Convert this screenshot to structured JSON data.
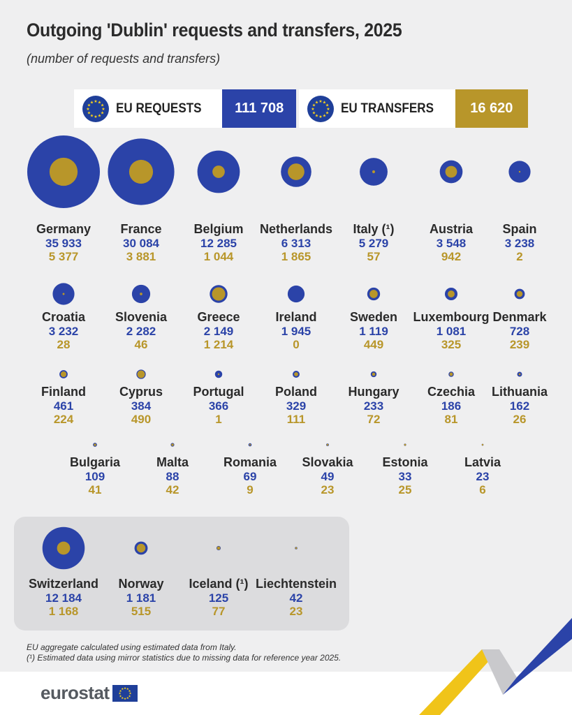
{
  "title": "Outgoing 'Dublin' requests and transfers, 2025",
  "subtitle": "(number of requests and transfers)",
  "summary": {
    "requests_label": "EU REQUESTS",
    "requests_value": "111 708",
    "transfers_label": "EU TRANSFERS",
    "transfers_value": "16 620"
  },
  "colors": {
    "requests": "#2b43a8",
    "transfers": "#b8962a",
    "panel": "#dcdcde"
  },
  "chart_data": {
    "type": "bubble",
    "series": [
      {
        "name": "EU REQUESTS",
        "color": "#2b43a8"
      },
      {
        "name": "EU TRANSFERS",
        "color": "#b8962a"
      }
    ],
    "eu_countries": [
      {
        "country": "Germany",
        "requests": 35933,
        "transfers": 5377,
        "requests_text": "35 933",
        "transfers_text": "5 377"
      },
      {
        "country": "France",
        "requests": 30084,
        "transfers": 3881,
        "requests_text": "30 084",
        "transfers_text": "3 881"
      },
      {
        "country": "Belgium",
        "requests": 12285,
        "transfers": 1044,
        "requests_text": "12 285",
        "transfers_text": "1 044"
      },
      {
        "country": "Netherlands",
        "requests": 6313,
        "transfers": 1865,
        "requests_text": "6 313",
        "transfers_text": "1 865"
      },
      {
        "country": "Italy (¹)",
        "requests": 5279,
        "transfers": 57,
        "requests_text": "5 279",
        "transfers_text": "57"
      },
      {
        "country": "Austria",
        "requests": 3548,
        "transfers": 942,
        "requests_text": "3 548",
        "transfers_text": "942"
      },
      {
        "country": "Spain",
        "requests": 3238,
        "transfers": 2,
        "requests_text": "3 238",
        "transfers_text": "2"
      },
      {
        "country": "Croatia",
        "requests": 3232,
        "transfers": 28,
        "requests_text": "3 232",
        "transfers_text": "28"
      },
      {
        "country": "Slovenia",
        "requests": 2282,
        "transfers": 46,
        "requests_text": "2 282",
        "transfers_text": "46"
      },
      {
        "country": "Greece",
        "requests": 2149,
        "transfers": 1214,
        "requests_text": "2 149",
        "transfers_text": "1 214"
      },
      {
        "country": "Ireland",
        "requests": 1945,
        "transfers": 0,
        "requests_text": "1 945",
        "transfers_text": "0"
      },
      {
        "country": "Sweden",
        "requests": 1119,
        "transfers": 449,
        "requests_text": "1 119",
        "transfers_text": "449"
      },
      {
        "country": "Luxembourg",
        "requests": 1081,
        "transfers": 325,
        "requests_text": "1 081",
        "transfers_text": "325"
      },
      {
        "country": "Denmark",
        "requests": 728,
        "transfers": 239,
        "requests_text": "728",
        "transfers_text": "239"
      },
      {
        "country": "Finland",
        "requests": 461,
        "transfers": 224,
        "requests_text": "461",
        "transfers_text": "224"
      },
      {
        "country": "Cyprus",
        "requests": 384,
        "transfers": 490,
        "requests_text": "384",
        "transfers_text": "490"
      },
      {
        "country": "Portugal",
        "requests": 366,
        "transfers": 1,
        "requests_text": "366",
        "transfers_text": "1"
      },
      {
        "country": "Poland",
        "requests": 329,
        "transfers": 111,
        "requests_text": "329",
        "transfers_text": "111"
      },
      {
        "country": "Hungary",
        "requests": 233,
        "transfers": 72,
        "requests_text": "233",
        "transfers_text": "72"
      },
      {
        "country": "Czechia",
        "requests": 186,
        "transfers": 81,
        "requests_text": "186",
        "transfers_text": "81"
      },
      {
        "country": "Lithuania",
        "requests": 162,
        "transfers": 26,
        "requests_text": "162",
        "transfers_text": "26"
      },
      {
        "country": "Bulgaria",
        "requests": 109,
        "transfers": 41,
        "requests_text": "109",
        "transfers_text": "41"
      },
      {
        "country": "Malta",
        "requests": 88,
        "transfers": 42,
        "requests_text": "88",
        "transfers_text": "42"
      },
      {
        "country": "Romania",
        "requests": 69,
        "transfers": 9,
        "requests_text": "69",
        "transfers_text": "9"
      },
      {
        "country": "Slovakia",
        "requests": 49,
        "transfers": 23,
        "requests_text": "49",
        "transfers_text": "23"
      },
      {
        "country": "Estonia",
        "requests": 33,
        "transfers": 25,
        "requests_text": "33",
        "transfers_text": "25"
      },
      {
        "country": "Latvia",
        "requests": 23,
        "transfers": 6,
        "requests_text": "23",
        "transfers_text": "6"
      }
    ],
    "non_eu_countries": [
      {
        "country": "Switzerland",
        "requests": 12184,
        "transfers": 1168,
        "requests_text": "12 184",
        "transfers_text": "1 168"
      },
      {
        "country": "Norway",
        "requests": 1181,
        "transfers": 515,
        "requests_text": "1 181",
        "transfers_text": "515"
      },
      {
        "country": "Iceland (¹)",
        "requests": 125,
        "transfers": 77,
        "requests_text": "125",
        "transfers_text": "77"
      },
      {
        "country": "Liechtenstein",
        "requests": 42,
        "transfers": 23,
        "requests_text": "42",
        "transfers_text": "23"
      }
    ]
  },
  "footnotes": {
    "line1": "EU aggregate calculated using estimated data from Italy.",
    "line2": "(¹) Estimated data using mirror statistics due to missing data for reference year 2025."
  },
  "logo_text": "eurostat"
}
